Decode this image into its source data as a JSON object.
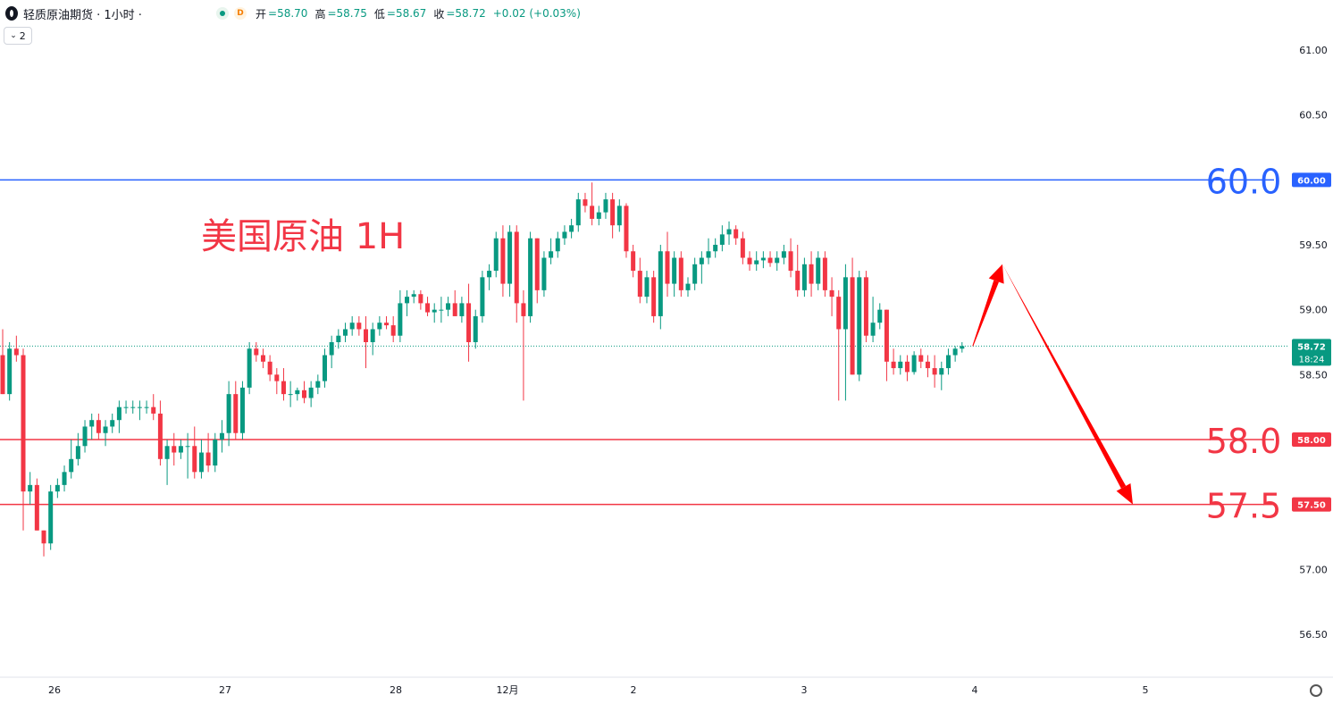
{
  "header": {
    "title": "轻质原油期货 · 1小时 ·",
    "d_badge": "D",
    "open_label": "开",
    "open": "=58.70",
    "high_label": "高",
    "high": "=58.75",
    "low_label": "低",
    "low": "=58.67",
    "close_label": "收",
    "close": "=58.72",
    "change": "+0.02 (+0.03%)",
    "collapse_count": "2"
  },
  "colors": {
    "up": "#089981",
    "down": "#f23645",
    "blue_line": "#2962ff",
    "red_line": "#f23645",
    "arrow": "#ff0000",
    "annotation": "#f23645"
  },
  "chart_data": {
    "type": "candlestick",
    "title": "美国原油 1H",
    "ylim": [
      56.3,
      61.25
    ],
    "y_ticks": [
      "61.00",
      "60.50",
      "59.50",
      "59.00",
      "58.50",
      "57.00",
      "56.50"
    ],
    "x_ticks": [
      "26",
      "27",
      "28",
      "12月",
      "2",
      "3",
      "4",
      "5"
    ],
    "current_price": "58.72",
    "countdown": "18:24",
    "horizontal_levels": [
      {
        "value": 60.0,
        "label": "60.0",
        "tag": "60.00",
        "color": "#2962ff"
      },
      {
        "value": 58.0,
        "label": "58.0",
        "tag": "58.00",
        "color": "#f23645"
      },
      {
        "value": 57.5,
        "label": "57.5",
        "tag": "57.50",
        "color": "#f23645"
      }
    ],
    "projection": {
      "points": [
        {
          "x": "3",
          "y": 58.72
        },
        {
          "x": "4",
          "y": 59.35
        },
        {
          "x": "5",
          "y": 57.5
        }
      ]
    },
    "candles": [
      [
        58.65,
        58.85,
        58.35,
        58.35
      ],
      [
        58.35,
        58.75,
        58.3,
        58.7
      ],
      [
        58.7,
        58.8,
        58.6,
        58.65
      ],
      [
        58.65,
        58.7,
        57.3,
        57.6
      ],
      [
        57.6,
        57.75,
        57.5,
        57.65
      ],
      [
        57.65,
        57.7,
        57.3,
        57.3
      ],
      [
        57.3,
        57.3,
        57.1,
        57.2
      ],
      [
        57.2,
        57.65,
        57.15,
        57.6
      ],
      [
        57.6,
        57.7,
        57.55,
        57.65
      ],
      [
        57.65,
        57.8,
        57.6,
        57.75
      ],
      [
        57.75,
        58.0,
        57.7,
        57.85
      ],
      [
        57.85,
        58.05,
        57.8,
        57.95
      ],
      [
        57.95,
        58.15,
        57.9,
        58.1
      ],
      [
        58.1,
        58.2,
        58.0,
        58.15
      ],
      [
        58.15,
        58.2,
        58.0,
        58.05
      ],
      [
        58.05,
        58.15,
        57.95,
        58.1
      ],
      [
        58.1,
        58.2,
        58.05,
        58.15
      ],
      [
        58.15,
        58.3,
        58.05,
        58.25
      ],
      [
        58.25,
        58.3,
        58.2,
        58.25
      ],
      [
        58.25,
        58.3,
        58.2,
        58.25
      ],
      [
        58.25,
        58.3,
        58.15,
        58.25
      ],
      [
        58.25,
        58.3,
        58.2,
        58.25
      ],
      [
        58.25,
        58.35,
        58.15,
        58.2
      ],
      [
        58.2,
        58.3,
        57.8,
        57.85
      ],
      [
        57.85,
        58.0,
        57.65,
        57.95
      ],
      [
        57.95,
        58.05,
        57.8,
        57.9
      ],
      [
        57.9,
        58.0,
        57.85,
        57.95
      ],
      [
        57.95,
        58.05,
        57.7,
        57.95
      ],
      [
        57.95,
        58.1,
        57.7,
        57.75
      ],
      [
        57.75,
        58.0,
        57.7,
        57.9
      ],
      [
        57.9,
        58.05,
        57.75,
        57.8
      ],
      [
        57.8,
        58.05,
        57.75,
        58.0
      ],
      [
        58.0,
        58.15,
        57.9,
        58.05
      ],
      [
        58.05,
        58.45,
        57.95,
        58.35
      ],
      [
        58.35,
        58.45,
        58.0,
        58.05
      ],
      [
        58.05,
        58.45,
        58.0,
        58.4
      ],
      [
        58.4,
        58.75,
        58.35,
        58.7
      ],
      [
        58.7,
        58.75,
        58.6,
        58.65
      ],
      [
        58.65,
        58.7,
        58.55,
        58.6
      ],
      [
        58.6,
        58.65,
        58.45,
        58.5
      ],
      [
        58.5,
        58.55,
        58.35,
        58.45
      ],
      [
        58.45,
        58.55,
        58.3,
        58.35
      ],
      [
        58.35,
        58.45,
        58.25,
        58.35
      ],
      [
        58.35,
        58.4,
        58.3,
        58.38
      ],
      [
        58.38,
        58.45,
        58.28,
        58.32
      ],
      [
        58.32,
        58.45,
        58.25,
        58.4
      ],
      [
        58.4,
        58.5,
        58.35,
        58.45
      ],
      [
        58.45,
        58.7,
        58.4,
        58.65
      ],
      [
        58.65,
        58.8,
        58.55,
        58.75
      ],
      [
        58.75,
        58.85,
        58.7,
        58.8
      ],
      [
        58.8,
        58.9,
        58.75,
        58.85
      ],
      [
        58.85,
        58.95,
        58.8,
        58.9
      ],
      [
        58.9,
        58.95,
        58.8,
        58.85
      ],
      [
        58.85,
        58.95,
        58.55,
        58.75
      ],
      [
        58.75,
        58.9,
        58.65,
        58.85
      ],
      [
        58.85,
        58.95,
        58.8,
        58.9
      ],
      [
        58.9,
        58.95,
        58.85,
        58.88
      ],
      [
        58.88,
        58.95,
        58.75,
        58.8
      ],
      [
        58.8,
        59.15,
        58.75,
        59.05
      ],
      [
        59.05,
        59.15,
        58.95,
        59.1
      ],
      [
        59.1,
        59.15,
        59.05,
        59.12
      ],
      [
        59.12,
        59.15,
        59.0,
        59.05
      ],
      [
        59.05,
        59.1,
        58.95,
        58.98
      ],
      [
        58.98,
        59.05,
        58.9,
        59.0
      ],
      [
        59.0,
        59.1,
        58.9,
        59.0
      ],
      [
        59.0,
        59.1,
        58.95,
        59.05
      ],
      [
        59.05,
        59.15,
        58.95,
        58.95
      ],
      [
        58.95,
        59.1,
        58.9,
        59.05
      ],
      [
        59.05,
        59.2,
        58.6,
        58.75
      ],
      [
        58.75,
        59.0,
        58.7,
        58.95
      ],
      [
        58.95,
        59.3,
        58.9,
        59.25
      ],
      [
        59.25,
        59.35,
        59.15,
        59.3
      ],
      [
        59.3,
        59.6,
        59.25,
        59.55
      ],
      [
        59.55,
        59.65,
        59.1,
        59.2
      ],
      [
        59.2,
        59.65,
        59.1,
        59.6
      ],
      [
        59.6,
        59.65,
        58.9,
        59.05
      ],
      [
        59.05,
        59.15,
        58.3,
        58.95
      ],
      [
        58.95,
        59.6,
        58.9,
        59.55
      ],
      [
        59.55,
        59.55,
        59.05,
        59.15
      ],
      [
        59.15,
        59.45,
        59.1,
        59.4
      ],
      [
        59.4,
        59.55,
        59.35,
        59.45
      ],
      [
        59.45,
        59.6,
        59.4,
        59.55
      ],
      [
        59.55,
        59.65,
        59.5,
        59.6
      ],
      [
        59.6,
        59.7,
        59.55,
        59.65
      ],
      [
        59.65,
        59.9,
        59.6,
        59.85
      ],
      [
        59.85,
        59.9,
        59.75,
        59.8
      ],
      [
        59.8,
        59.98,
        59.65,
        59.7
      ],
      [
        59.7,
        59.8,
        59.65,
        59.75
      ],
      [
        59.75,
        59.9,
        59.7,
        59.85
      ],
      [
        59.85,
        59.9,
        59.55,
        59.65
      ],
      [
        59.65,
        59.85,
        59.6,
        59.8
      ],
      [
        59.8,
        59.82,
        59.4,
        59.45
      ],
      [
        59.45,
        59.5,
        59.25,
        59.3
      ],
      [
        59.3,
        59.4,
        59.05,
        59.1
      ],
      [
        59.1,
        59.3,
        59.05,
        59.25
      ],
      [
        59.25,
        59.3,
        58.9,
        58.95
      ],
      [
        58.95,
        59.5,
        58.85,
        59.45
      ],
      [
        59.45,
        59.6,
        59.1,
        59.2
      ],
      [
        59.2,
        59.45,
        59.1,
        59.4
      ],
      [
        59.4,
        59.45,
        59.1,
        59.15
      ],
      [
        59.15,
        59.25,
        59.1,
        59.2
      ],
      [
        59.2,
        59.4,
        59.15,
        59.35
      ],
      [
        59.35,
        59.45,
        59.2,
        59.4
      ],
      [
        59.4,
        59.55,
        59.35,
        59.45
      ],
      [
        59.45,
        59.55,
        59.4,
        59.5
      ],
      [
        59.5,
        59.65,
        59.45,
        59.58
      ],
      [
        59.58,
        59.68,
        59.5,
        59.62
      ],
      [
        59.62,
        59.65,
        59.5,
        59.55
      ],
      [
        59.55,
        59.6,
        59.35,
        59.4
      ],
      [
        59.4,
        59.45,
        59.3,
        59.35
      ],
      [
        59.35,
        59.45,
        59.3,
        59.38
      ],
      [
        59.38,
        59.45,
        59.32,
        59.4
      ],
      [
        59.4,
        59.45,
        59.33,
        59.36
      ],
      [
        59.36,
        59.45,
        59.3,
        59.4
      ],
      [
        59.4,
        59.5,
        59.35,
        59.45
      ],
      [
        59.45,
        59.55,
        59.25,
        59.3
      ],
      [
        59.3,
        59.5,
        59.1,
        59.15
      ],
      [
        59.15,
        59.4,
        59.1,
        59.35
      ],
      [
        59.35,
        59.45,
        59.1,
        59.2
      ],
      [
        59.2,
        59.45,
        59.15,
        59.4
      ],
      [
        59.4,
        59.45,
        59.1,
        59.15
      ],
      [
        59.15,
        59.25,
        58.95,
        59.1
      ],
      [
        59.1,
        59.15,
        58.3,
        58.85
      ],
      [
        58.85,
        59.35,
        58.3,
        59.25
      ],
      [
        59.25,
        59.4,
        58.5,
        58.5
      ],
      [
        58.5,
        59.3,
        58.45,
        59.25
      ],
      [
        59.25,
        59.3,
        58.75,
        58.8
      ],
      [
        58.8,
        59.1,
        58.75,
        58.9
      ],
      [
        58.9,
        59.05,
        58.85,
        59.0
      ],
      [
        59.0,
        59.0,
        58.45,
        58.6
      ],
      [
        58.6,
        58.7,
        58.5,
        58.55
      ],
      [
        58.55,
        58.65,
        58.5,
        58.6
      ],
      [
        58.6,
        58.65,
        58.45,
        58.52
      ],
      [
        58.52,
        58.68,
        58.5,
        58.65
      ],
      [
        58.65,
        58.7,
        58.55,
        58.6
      ],
      [
        58.6,
        58.65,
        58.48,
        58.55
      ],
      [
        58.55,
        58.65,
        58.4,
        58.5
      ],
      [
        58.5,
        58.6,
        58.38,
        58.55
      ],
      [
        58.55,
        58.7,
        58.5,
        58.65
      ],
      [
        58.65,
        58.72,
        58.6,
        58.7
      ],
      [
        58.7,
        58.75,
        58.67,
        58.72
      ]
    ]
  }
}
